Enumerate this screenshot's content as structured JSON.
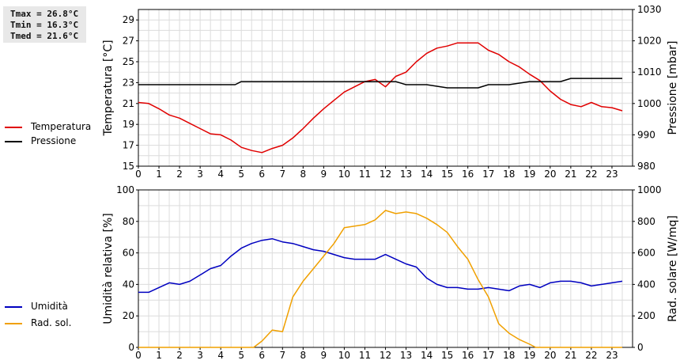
{
  "stats": [
    "Tmax = 26.8°C",
    "Tmin = 16.3°C",
    "Tmed = 21.6°C"
  ],
  "chart_data": [
    {
      "type": "line",
      "ylabel_left": "Temperatura [°C]",
      "ylabel_right": "Pressione [mbar]",
      "xlim": [
        0,
        24
      ],
      "x_ticks": [
        "0",
        "1",
        "2",
        "3",
        "4",
        "5",
        "6",
        "7",
        "8",
        "9",
        "10",
        "11",
        "12",
        "13",
        "14",
        "15",
        "16",
        "17",
        "18",
        "19",
        "20",
        "21",
        "22",
        "23"
      ],
      "ylim_left": [
        15,
        30
      ],
      "yticks_left": [
        "15",
        "17",
        "19",
        "21",
        "23",
        "25",
        "27",
        "29"
      ],
      "ylim_right": [
        980,
        1030
      ],
      "yticks_right": [
        "980",
        "990",
        "1000",
        "1010",
        "1020",
        "1030"
      ],
      "grid": true,
      "legend_position": "left",
      "series": [
        {
          "name": "Temperatura",
          "axis": "left",
          "color": "#e00000",
          "x": [
            0,
            0.5,
            1,
            1.5,
            2,
            2.5,
            3,
            3.5,
            4,
            4.5,
            5,
            5.5,
            6,
            6.5,
            7,
            7.5,
            8,
            8.5,
            9,
            9.5,
            10,
            10.5,
            11,
            11.5,
            12,
            12.5,
            13,
            13.5,
            14,
            14.5,
            15,
            15.5,
            16,
            16.5,
            17,
            17.5,
            18,
            18.5,
            19,
            19.5,
            20,
            20.5,
            21,
            21.5,
            22,
            22.5,
            23,
            23.5
          ],
          "values": [
            21.1,
            21.0,
            20.5,
            19.9,
            19.6,
            19.1,
            18.6,
            18.1,
            18.0,
            17.5,
            16.8,
            16.5,
            16.3,
            16.7,
            17.0,
            17.7,
            18.6,
            19.6,
            20.5,
            21.3,
            22.1,
            22.6,
            23.1,
            23.3,
            22.6,
            23.6,
            24.0,
            25.0,
            25.8,
            26.3,
            26.5,
            26.8,
            26.8,
            26.8,
            26.1,
            25.7,
            25.0,
            24.5,
            23.8,
            23.2,
            22.2,
            21.4,
            20.9,
            20.7,
            21.1,
            20.7,
            20.6,
            20.3
          ]
        },
        {
          "name": "Pressione",
          "axis": "right",
          "color": "#000000",
          "x": [
            0,
            1,
            2,
            3,
            4,
            4.7,
            5,
            6,
            7,
            8,
            9,
            10,
            11,
            11.5,
            12,
            12.5,
            13,
            14,
            15,
            16,
            16.5,
            17,
            18,
            19,
            20,
            20.5,
            21,
            22,
            23,
            23.5
          ],
          "values": [
            1006,
            1006,
            1006,
            1006,
            1006,
            1006,
            1007,
            1007,
            1007,
            1007,
            1007,
            1007,
            1007,
            1007,
            1007,
            1007,
            1006,
            1006,
            1005,
            1005,
            1005,
            1006,
            1006,
            1007,
            1007,
            1007,
            1008,
            1008,
            1008,
            1008
          ]
        }
      ]
    },
    {
      "type": "line",
      "ylabel_left": "Umidità relativa [%]",
      "ylabel_right": "Rad. solare [W/mq]",
      "xlim": [
        0,
        24
      ],
      "x_ticks": [
        "0",
        "1",
        "2",
        "3",
        "4",
        "5",
        "6",
        "7",
        "8",
        "9",
        "10",
        "11",
        "12",
        "13",
        "14",
        "15",
        "16",
        "17",
        "18",
        "19",
        "20",
        "21",
        "22",
        "23"
      ],
      "ylim_left": [
        0,
        100
      ],
      "yticks_left": [
        "0",
        "20",
        "40",
        "60",
        "80",
        "100"
      ],
      "ylim_right": [
        0,
        1000
      ],
      "yticks_right": [
        "0",
        "200",
        "400",
        "600",
        "800",
        "1000"
      ],
      "grid": true,
      "legend_position": "left",
      "series": [
        {
          "name": "Umidità",
          "axis": "left",
          "color": "#0000c0",
          "x": [
            0,
            0.5,
            1,
            1.5,
            2,
            2.5,
            3,
            3.5,
            4,
            4.5,
            5,
            5.5,
            6,
            6.5,
            7,
            7.5,
            8,
            8.5,
            9,
            9.5,
            10,
            10.5,
            11,
            11.5,
            12,
            12.5,
            13,
            13.5,
            14,
            14.5,
            15,
            15.5,
            16,
            16.5,
            17,
            17.5,
            18,
            18.5,
            19,
            19.5,
            20,
            20.5,
            21,
            21.5,
            22,
            22.5,
            23,
            23.5
          ],
          "values": [
            35,
            35,
            38,
            41,
            40,
            42,
            46,
            50,
            52,
            58,
            63,
            66,
            68,
            69,
            67,
            66,
            64,
            62,
            61,
            59,
            57,
            56,
            56,
            56,
            59,
            56,
            53,
            51,
            44,
            40,
            38,
            38,
            37,
            37,
            38,
            37,
            36,
            39,
            40,
            38,
            41,
            42,
            42,
            41,
            39,
            40,
            41,
            42
          ]
        },
        {
          "name": "Rad. sol.",
          "axis": "right",
          "color": "#f0a000",
          "x": [
            0,
            1,
            2,
            3,
            4,
            5,
            5.6,
            6,
            6.5,
            7,
            7.5,
            8,
            8.5,
            9,
            9.5,
            10,
            10.5,
            11,
            11.5,
            12,
            12.5,
            13,
            13.5,
            14,
            14.5,
            15,
            15.5,
            16,
            16.5,
            17,
            17.5,
            18,
            18.5,
            19,
            19.3,
            20,
            21,
            22,
            23,
            23.5
          ],
          "values": [
            0,
            0,
            0,
            0,
            0,
            0,
            0,
            40,
            110,
            100,
            320,
            420,
            500,
            580,
            660,
            760,
            770,
            780,
            810,
            870,
            850,
            860,
            850,
            820,
            780,
            730,
            640,
            560,
            430,
            320,
            150,
            90,
            50,
            20,
            0,
            0,
            0,
            0,
            0,
            0
          ]
        }
      ]
    }
  ]
}
